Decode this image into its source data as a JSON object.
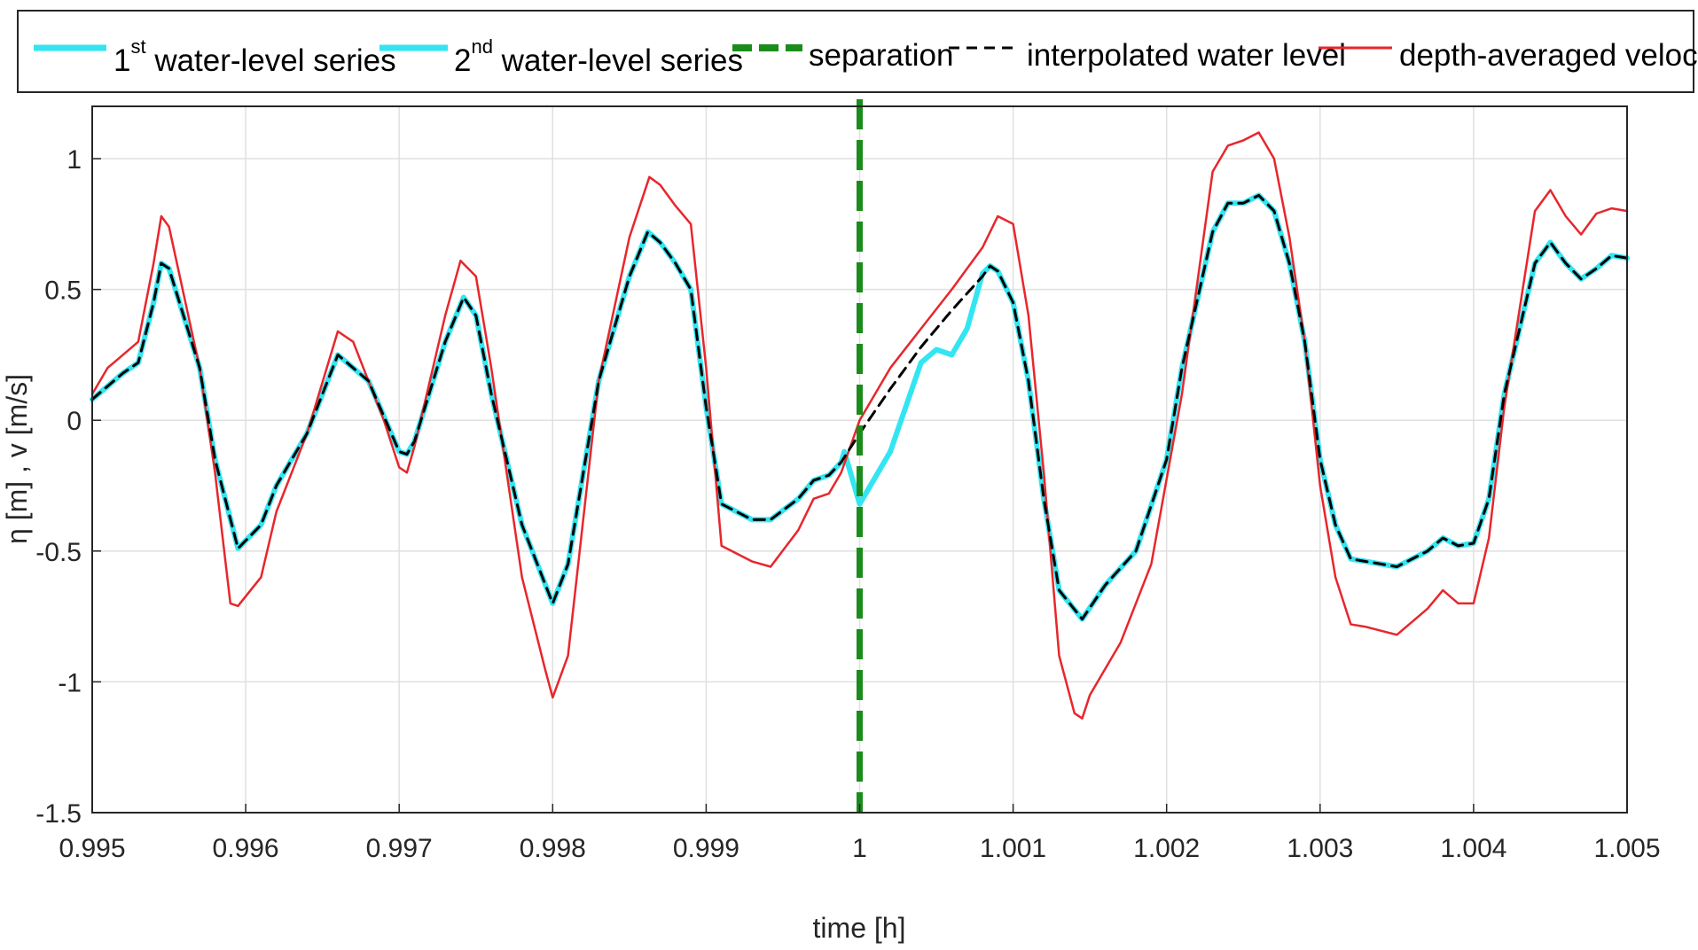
{
  "chart_data": {
    "type": "line",
    "xlabel": "time [h]",
    "ylabel": "η [m] , v [m/s]",
    "xlim": [
      0.995,
      1.005
    ],
    "ylim": [
      -1.5,
      1.2
    ],
    "grid": true,
    "legend_placement": "top (outside, horizontal)",
    "x_ticks": [
      "0.995",
      "0.996",
      "0.997",
      "0.998",
      "0.999",
      "1",
      "1.001",
      "1.002",
      "1.003",
      "1.004",
      "1.005"
    ],
    "y_ticks": [
      "1",
      "0.5",
      "0",
      "-0.5",
      "-1",
      "-1.5"
    ],
    "legend": [
      {
        "num": "1",
        "sup": "st",
        "text": " water-level series"
      },
      {
        "num": "2",
        "sup": "nd",
        "text": " water-level series"
      },
      {
        "num": "",
        "sup": "",
        "text": "separation"
      },
      {
        "num": "",
        "sup": "",
        "text": "interpolated water level"
      },
      {
        "num": "",
        "sup": "",
        "text": "depth-averaged velocity"
      }
    ],
    "separation_x": 1.0,
    "series": [
      {
        "name": "1st water-level series",
        "color": "#33e5f2",
        "style": "solid-thick",
        "points": [
          [
            0.995,
            0.08
          ],
          [
            0.9952,
            0.18
          ],
          [
            0.9953,
            0.22
          ],
          [
            0.9954,
            0.45
          ],
          [
            0.99545,
            0.6
          ],
          [
            0.9955,
            0.58
          ],
          [
            0.9957,
            0.2
          ],
          [
            0.9958,
            -0.15
          ],
          [
            0.99595,
            -0.49
          ],
          [
            0.9961,
            -0.4
          ],
          [
            0.9962,
            -0.25
          ],
          [
            0.9964,
            -0.05
          ],
          [
            0.9966,
            0.25
          ],
          [
            0.9968,
            0.15
          ],
          [
            0.997,
            -0.12
          ],
          [
            0.99705,
            -0.13
          ],
          [
            0.9971,
            -0.08
          ],
          [
            0.9973,
            0.3
          ],
          [
            0.99742,
            0.47
          ],
          [
            0.9975,
            0.4
          ],
          [
            0.9976,
            0.1
          ],
          [
            0.9978,
            -0.4
          ],
          [
            0.998,
            -0.7
          ],
          [
            0.9981,
            -0.55
          ],
          [
            0.9983,
            0.15
          ],
          [
            0.9985,
            0.55
          ],
          [
            0.99862,
            0.72
          ],
          [
            0.9987,
            0.68
          ],
          [
            0.9988,
            0.6
          ],
          [
            0.9989,
            0.5
          ],
          [
            0.999,
            0.05
          ],
          [
            0.9991,
            -0.32
          ],
          [
            0.9993,
            -0.38
          ],
          [
            0.99942,
            -0.38
          ],
          [
            0.9996,
            -0.3
          ],
          [
            0.9997,
            -0.23
          ],
          [
            0.9998,
            -0.21
          ],
          [
            0.99988,
            -0.16
          ],
          [
            0.9999,
            -0.12
          ],
          [
            1.0,
            -0.32
          ]
        ]
      },
      {
        "name": "2nd water-level series",
        "color": "#33e5f2",
        "style": "solid-thick",
        "points": [
          [
            1.0,
            -0.32
          ],
          [
            1.0002,
            -0.12
          ],
          [
            1.0004,
            0.22
          ],
          [
            1.0005,
            0.27
          ],
          [
            1.0006,
            0.25
          ],
          [
            1.0007,
            0.35
          ],
          [
            1.0008,
            0.56
          ],
          [
            1.00085,
            0.59
          ],
          [
            1.0009,
            0.57
          ],
          [
            1.001,
            0.45
          ],
          [
            1.0011,
            0.15
          ],
          [
            1.0012,
            -0.3
          ],
          [
            1.0013,
            -0.65
          ],
          [
            1.00145,
            -0.76
          ],
          [
            1.0016,
            -0.63
          ],
          [
            1.0018,
            -0.5
          ],
          [
            1.002,
            -0.15
          ],
          [
            1.0021,
            0.2
          ],
          [
            1.0023,
            0.72
          ],
          [
            1.0024,
            0.83
          ],
          [
            1.0025,
            0.83
          ],
          [
            1.0026,
            0.86
          ],
          [
            1.0027,
            0.8
          ],
          [
            1.0028,
            0.6
          ],
          [
            1.0029,
            0.3
          ],
          [
            1.003,
            -0.15
          ],
          [
            1.0031,
            -0.4
          ],
          [
            1.0032,
            -0.53
          ],
          [
            1.0033,
            -0.54
          ],
          [
            1.0035,
            -0.56
          ],
          [
            1.0037,
            -0.5
          ],
          [
            1.0038,
            -0.45
          ],
          [
            1.0039,
            -0.48
          ],
          [
            1.004,
            -0.47
          ],
          [
            1.0041,
            -0.3
          ],
          [
            1.0042,
            0.1
          ],
          [
            1.0044,
            0.6
          ],
          [
            1.0045,
            0.68
          ],
          [
            1.0046,
            0.6
          ],
          [
            1.0047,
            0.54
          ],
          [
            1.0048,
            0.58
          ],
          [
            1.0049,
            0.63
          ],
          [
            1.005,
            0.62
          ]
        ]
      },
      {
        "name": "interpolated water level",
        "color": "#000000",
        "style": "dashed",
        "points": [
          [
            0.995,
            0.08
          ],
          [
            0.9952,
            0.18
          ],
          [
            0.9953,
            0.22
          ],
          [
            0.9954,
            0.45
          ],
          [
            0.99545,
            0.6
          ],
          [
            0.9955,
            0.58
          ],
          [
            0.9957,
            0.2
          ],
          [
            0.9958,
            -0.15
          ],
          [
            0.99595,
            -0.49
          ],
          [
            0.9961,
            -0.4
          ],
          [
            0.9962,
            -0.25
          ],
          [
            0.9964,
            -0.05
          ],
          [
            0.9966,
            0.25
          ],
          [
            0.9968,
            0.15
          ],
          [
            0.997,
            -0.12
          ],
          [
            0.99705,
            -0.13
          ],
          [
            0.9971,
            -0.08
          ],
          [
            0.9973,
            0.3
          ],
          [
            0.99742,
            0.47
          ],
          [
            0.9975,
            0.4
          ],
          [
            0.9976,
            0.1
          ],
          [
            0.9978,
            -0.4
          ],
          [
            0.998,
            -0.7
          ],
          [
            0.9981,
            -0.55
          ],
          [
            0.9983,
            0.15
          ],
          [
            0.9985,
            0.55
          ],
          [
            0.99862,
            0.72
          ],
          [
            0.9987,
            0.68
          ],
          [
            0.9988,
            0.6
          ],
          [
            0.9989,
            0.5
          ],
          [
            0.999,
            0.05
          ],
          [
            0.9991,
            -0.32
          ],
          [
            0.9993,
            -0.38
          ],
          [
            0.99942,
            -0.38
          ],
          [
            0.9996,
            -0.3
          ],
          [
            0.9997,
            -0.23
          ],
          [
            0.9998,
            -0.21
          ],
          [
            0.99988,
            -0.16
          ],
          [
            1.0,
            -0.05
          ],
          [
            1.0002,
            0.12
          ],
          [
            1.0004,
            0.28
          ],
          [
            1.0006,
            0.42
          ],
          [
            1.0008,
            0.55
          ],
          [
            1.00085,
            0.59
          ],
          [
            1.0009,
            0.57
          ],
          [
            1.001,
            0.45
          ],
          [
            1.0011,
            0.15
          ],
          [
            1.0012,
            -0.3
          ],
          [
            1.0013,
            -0.65
          ],
          [
            1.00145,
            -0.76
          ],
          [
            1.0016,
            -0.63
          ],
          [
            1.0018,
            -0.5
          ],
          [
            1.002,
            -0.15
          ],
          [
            1.0021,
            0.2
          ],
          [
            1.0023,
            0.72
          ],
          [
            1.0024,
            0.83
          ],
          [
            1.0025,
            0.83
          ],
          [
            1.0026,
            0.86
          ],
          [
            1.0027,
            0.8
          ],
          [
            1.0028,
            0.6
          ],
          [
            1.0029,
            0.3
          ],
          [
            1.003,
            -0.15
          ],
          [
            1.0031,
            -0.4
          ],
          [
            1.0032,
            -0.53
          ],
          [
            1.0033,
            -0.54
          ],
          [
            1.0035,
            -0.56
          ],
          [
            1.0037,
            -0.5
          ],
          [
            1.0038,
            -0.45
          ],
          [
            1.0039,
            -0.48
          ],
          [
            1.004,
            -0.47
          ],
          [
            1.0041,
            -0.3
          ],
          [
            1.0042,
            0.1
          ],
          [
            1.0044,
            0.6
          ],
          [
            1.0045,
            0.68
          ],
          [
            1.0046,
            0.6
          ],
          [
            1.0047,
            0.54
          ],
          [
            1.0048,
            0.58
          ],
          [
            1.0049,
            0.63
          ],
          [
            1.005,
            0.62
          ]
        ]
      },
      {
        "name": "depth-averaged velocity",
        "color": "#e8262c",
        "style": "solid-thin",
        "points": [
          [
            0.995,
            0.1
          ],
          [
            0.9951,
            0.2
          ],
          [
            0.9953,
            0.3
          ],
          [
            0.9954,
            0.6
          ],
          [
            0.99545,
            0.78
          ],
          [
            0.9955,
            0.74
          ],
          [
            0.9957,
            0.2
          ],
          [
            0.9958,
            -0.2
          ],
          [
            0.9959,
            -0.7
          ],
          [
            0.99595,
            -0.71
          ],
          [
            0.9961,
            -0.6
          ],
          [
            0.9962,
            -0.35
          ],
          [
            0.9964,
            -0.05
          ],
          [
            0.9966,
            0.34
          ],
          [
            0.9967,
            0.3
          ],
          [
            0.9969,
            0.0
          ],
          [
            0.997,
            -0.18
          ],
          [
            0.99705,
            -0.2
          ],
          [
            0.9971,
            -0.1
          ],
          [
            0.9973,
            0.4
          ],
          [
            0.9974,
            0.61
          ],
          [
            0.9975,
            0.55
          ],
          [
            0.9976,
            0.2
          ],
          [
            0.9978,
            -0.6
          ],
          [
            0.99795,
            -0.95
          ],
          [
            0.998,
            -1.06
          ],
          [
            0.9981,
            -0.9
          ],
          [
            0.9983,
            0.15
          ],
          [
            0.9985,
            0.7
          ],
          [
            0.99863,
            0.93
          ],
          [
            0.9987,
            0.9
          ],
          [
            0.9988,
            0.82
          ],
          [
            0.9989,
            0.75
          ],
          [
            0.999,
            0.2
          ],
          [
            0.9991,
            -0.48
          ],
          [
            0.9993,
            -0.54
          ],
          [
            0.99942,
            -0.56
          ],
          [
            0.9996,
            -0.42
          ],
          [
            0.9997,
            -0.3
          ],
          [
            0.9998,
            -0.28
          ],
          [
            0.99988,
            -0.2
          ],
          [
            1.0,
            0.0
          ],
          [
            1.0002,
            0.2
          ],
          [
            1.0004,
            0.35
          ],
          [
            1.0006,
            0.5
          ],
          [
            1.0008,
            0.66
          ],
          [
            1.0009,
            0.78
          ],
          [
            1.001,
            0.75
          ],
          [
            1.0011,
            0.4
          ],
          [
            1.0012,
            -0.2
          ],
          [
            1.0013,
            -0.9
          ],
          [
            1.0014,
            -1.12
          ],
          [
            1.00145,
            -1.14
          ],
          [
            1.0015,
            -1.05
          ],
          [
            1.0017,
            -0.85
          ],
          [
            1.0019,
            -0.55
          ],
          [
            1.0021,
            0.1
          ],
          [
            1.0023,
            0.95
          ],
          [
            1.0024,
            1.05
          ],
          [
            1.0025,
            1.07
          ],
          [
            1.0026,
            1.1
          ],
          [
            1.0027,
            1.0
          ],
          [
            1.0028,
            0.7
          ],
          [
            1.0029,
            0.3
          ],
          [
            1.003,
            -0.25
          ],
          [
            1.0031,
            -0.6
          ],
          [
            1.0032,
            -0.78
          ],
          [
            1.0033,
            -0.79
          ],
          [
            1.0035,
            -0.82
          ],
          [
            1.0037,
            -0.72
          ],
          [
            1.0038,
            -0.65
          ],
          [
            1.0039,
            -0.7
          ],
          [
            1.004,
            -0.7
          ],
          [
            1.0041,
            -0.45
          ],
          [
            1.0042,
            0.05
          ],
          [
            1.0044,
            0.8
          ],
          [
            1.0045,
            0.88
          ],
          [
            1.0046,
            0.78
          ],
          [
            1.0047,
            0.71
          ],
          [
            1.0048,
            0.79
          ],
          [
            1.0049,
            0.81
          ],
          [
            1.005,
            0.8
          ]
        ]
      }
    ],
    "colors": {
      "separation": "#1b8c1b",
      "grid": "#e0e0e0",
      "axis": "#262626"
    }
  }
}
